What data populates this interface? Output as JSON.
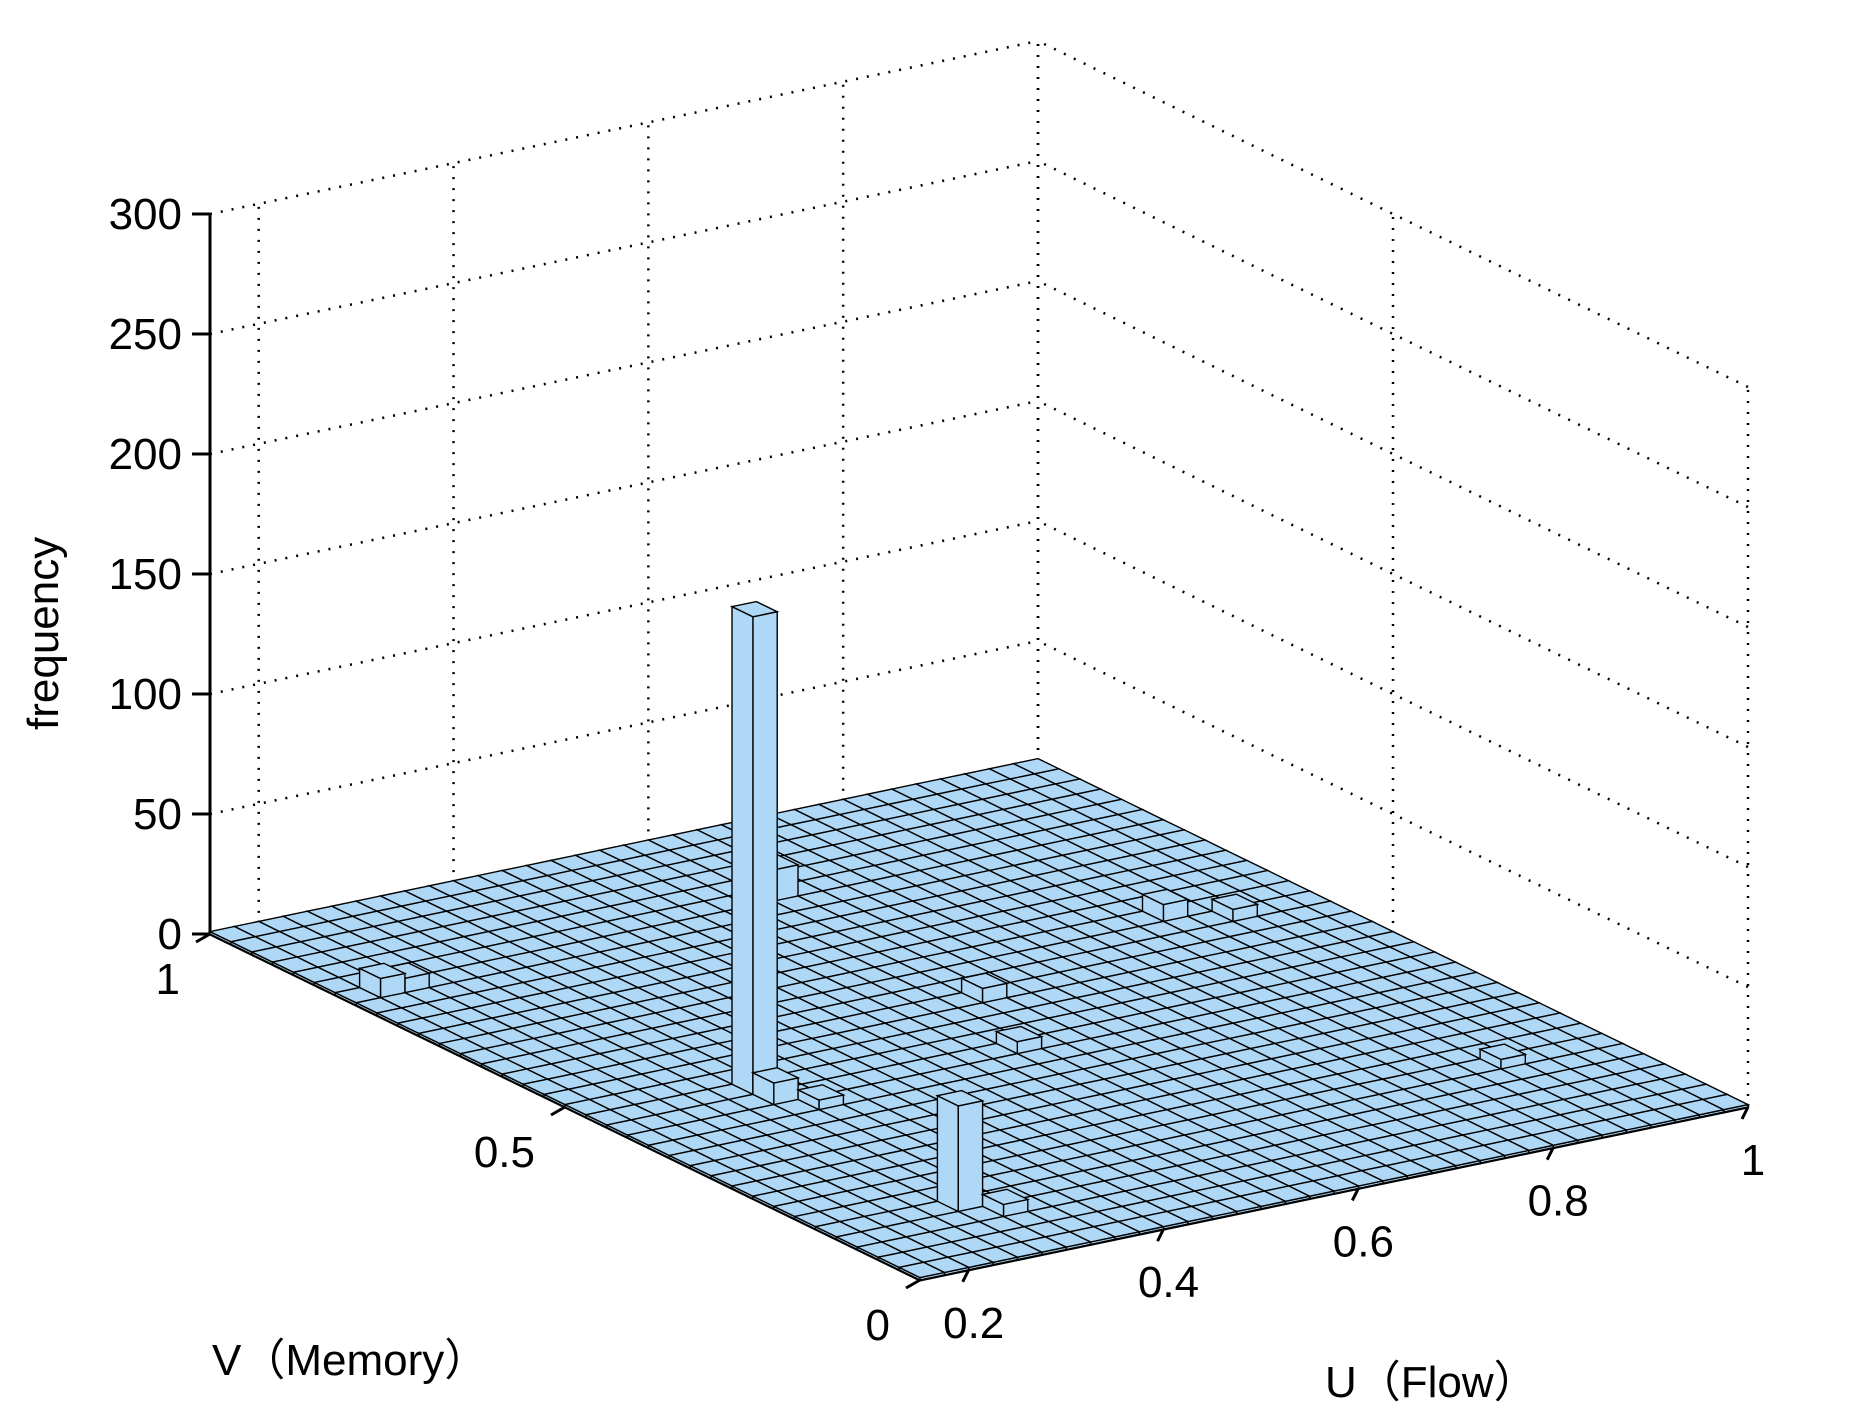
{
  "chart_data": {
    "type": "bar3d",
    "xlabel": "U（Flow）",
    "ylabel": "V（Memory）",
    "zlabel": "frequency",
    "xlim": [
      0.15,
      1.0
    ],
    "ylim": [
      0,
      1
    ],
    "zlim": [
      0,
      300
    ],
    "xticks": [
      "0.2",
      "0.4",
      "0.6",
      "0.8",
      "1"
    ],
    "yticks": [
      "0",
      "0.5",
      "1"
    ],
    "zticks": [
      "0",
      "50",
      "100",
      "150",
      "200",
      "250",
      "300"
    ],
    "grid": true,
    "bar_color": "#aed8f5",
    "edge_color": "#000000",
    "bins": {
      "u_bins": 34,
      "v_bins": 34
    },
    "base_frequency": 1,
    "bars": [
      {
        "u": 0.31,
        "v": 0.45,
        "frequency": 200
      },
      {
        "u": 0.28,
        "v": 0.12,
        "frequency": 45
      },
      {
        "u": 0.32,
        "v": 0.43,
        "frequency": 10
      },
      {
        "u": 0.33,
        "v": 0.41,
        "frequency": 5
      },
      {
        "u": 0.18,
        "v": 0.82,
        "frequency": 9
      },
      {
        "u": 0.2,
        "v": 0.8,
        "frequency": 7
      },
      {
        "u": 0.62,
        "v": 0.85,
        "frequency": 14
      },
      {
        "u": 0.85,
        "v": 0.62,
        "frequency": 8
      },
      {
        "u": 0.9,
        "v": 0.6,
        "frequency": 6
      },
      {
        "u": 0.6,
        "v": 0.55,
        "frequency": 7
      },
      {
        "u": 0.55,
        "v": 0.42,
        "frequency": 6
      },
      {
        "u": 0.3,
        "v": 0.1,
        "frequency": 6
      },
      {
        "u": 0.88,
        "v": 0.2,
        "frequency": 5
      }
    ]
  }
}
